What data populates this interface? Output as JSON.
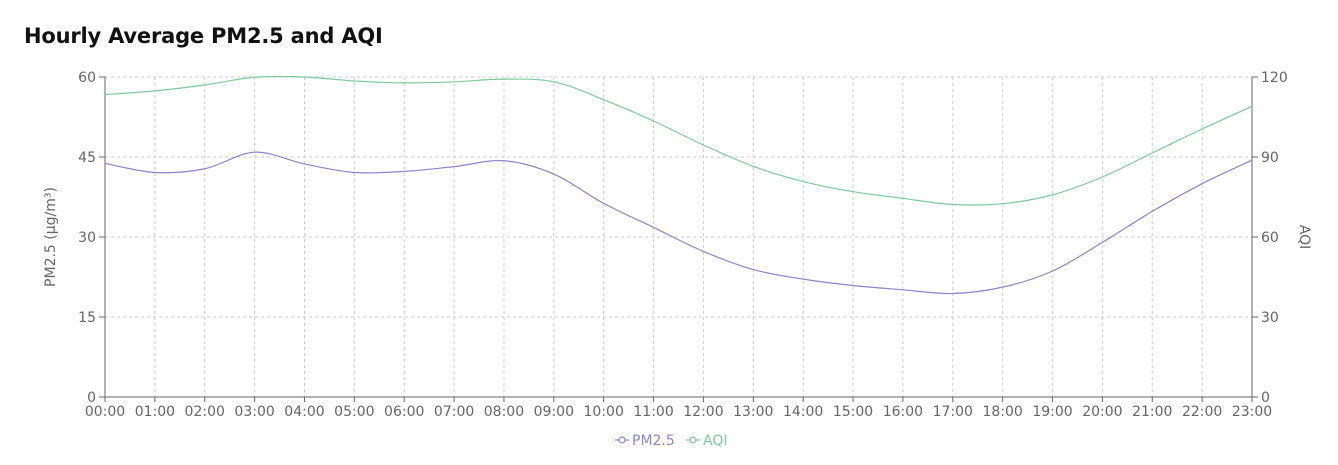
{
  "chart_data": {
    "type": "line",
    "title": "Hourly Average PM2.5 and AQI",
    "x": [
      "00:00",
      "01:00",
      "02:00",
      "03:00",
      "04:00",
      "05:00",
      "06:00",
      "07:00",
      "08:00",
      "09:00",
      "10:00",
      "11:00",
      "12:00",
      "13:00",
      "14:00",
      "15:00",
      "16:00",
      "17:00",
      "18:00",
      "19:00",
      "20:00",
      "21:00",
      "22:00",
      "23:00"
    ],
    "y_left": {
      "label": "PM2.5 (μg/m³)",
      "ylim": [
        0,
        60
      ],
      "ticks": [
        "0",
        "15",
        "30",
        "45",
        "60"
      ]
    },
    "y_right": {
      "label": "AQI",
      "ylim": [
        0,
        120
      ],
      "ticks": [
        "0",
        "30",
        "60",
        "90",
        "120"
      ]
    },
    "series": [
      {
        "name": "PM2.5",
        "axis": "left",
        "color": "#8c84c8",
        "values": [
          43.8,
          42.1,
          42.8,
          45.9,
          43.7,
          42.1,
          42.3,
          43.2,
          44.3,
          41.8,
          36.3,
          31.8,
          27.3,
          23.9,
          22.1,
          20.9,
          20.1,
          19.4,
          20.6,
          23.6,
          29.0,
          34.8,
          40.0,
          44.4
        ]
      },
      {
        "name": "AQI",
        "axis": "right",
        "color": "#7ec99a",
        "values": [
          113.4,
          114.8,
          117.0,
          119.9,
          120.0,
          118.5,
          117.8,
          118.2,
          119.2,
          118.2,
          111.5,
          103.5,
          94.5,
          86.5,
          80.8,
          77.0,
          74.5,
          72.2,
          72.5,
          75.8,
          82.5,
          91.5,
          100.5,
          109.0
        ]
      }
    ],
    "grid": true,
    "legend_position": "bottom-center"
  }
}
